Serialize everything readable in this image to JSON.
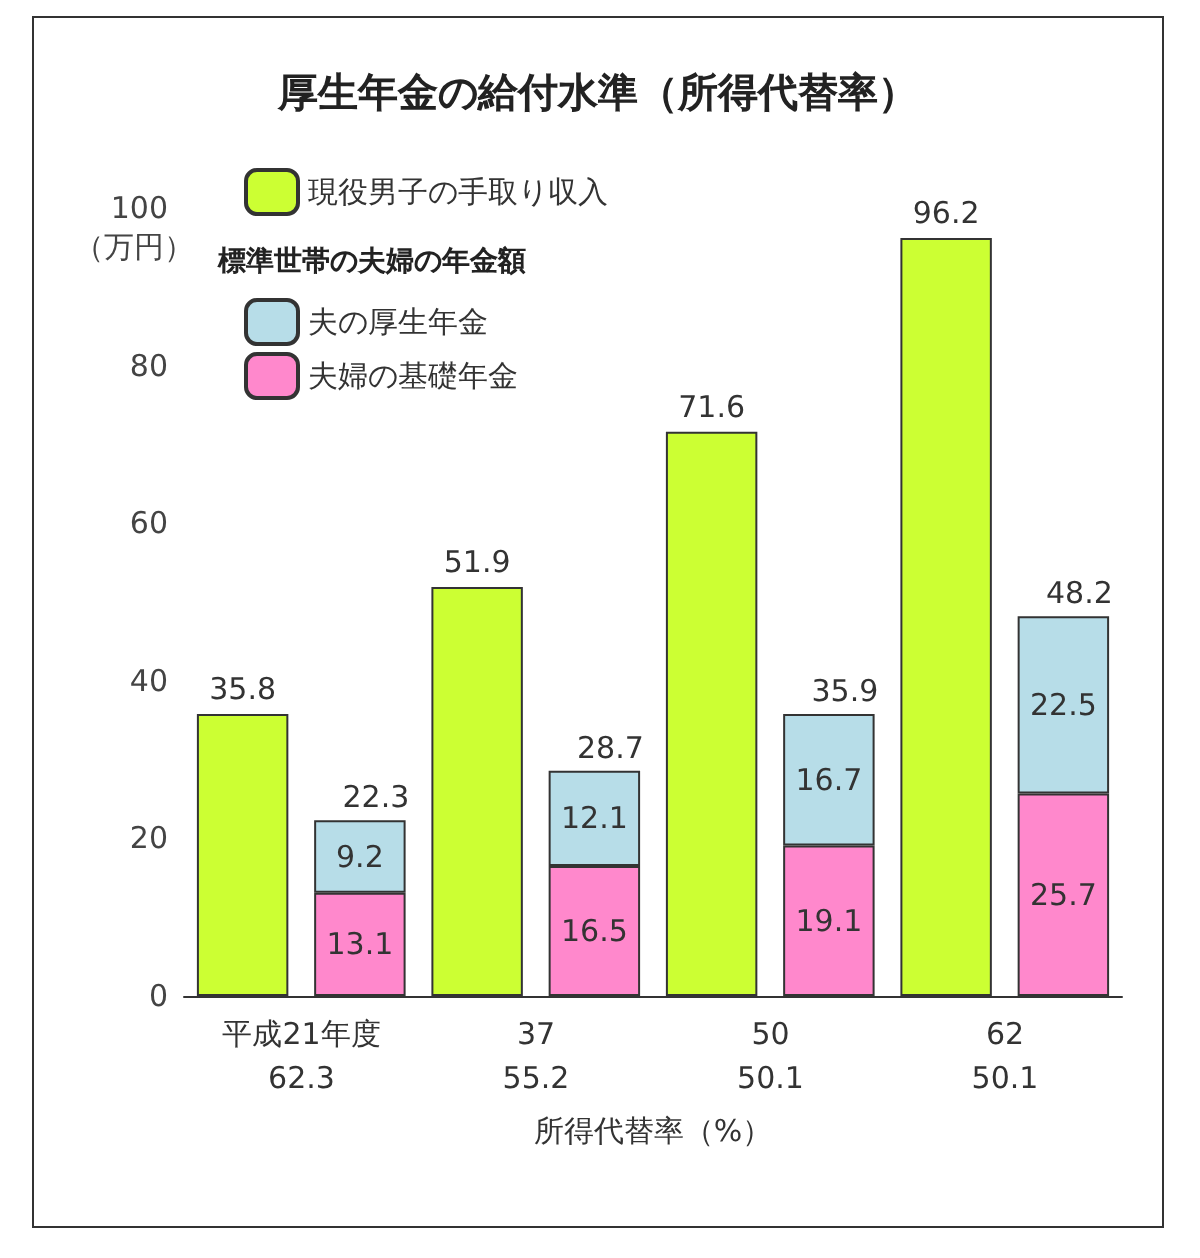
{
  "chart_data": {
    "type": "bar",
    "title": "厚生年金の給付水準（所得代替率）",
    "categories": [
      "平成21年度\n62.3",
      null,
      "37\n55.2",
      null,
      "50\n50.1",
      null,
      "62\n50.1",
      null
    ],
    "xlabel": "所得代替率（%）",
    "ylabel": "（万円）",
    "legend_title": "標準世帯の夫婦の年金額",
    "series": [
      {
        "name": "現役男子の手取り収入",
        "color": "#ccff33",
        "values": [
          35.8,
          null,
          51.9,
          null,
          71.6,
          null,
          96.2,
          null
        ]
      },
      {
        "name": "夫婦の基礎年金",
        "color": "#ff88cc",
        "values": [
          null,
          13.1,
          null,
          16.5,
          null,
          19.1,
          null,
          25.7
        ]
      },
      {
        "name": "夫の厚生年金",
        "color": "#b7dde8",
        "values": [
          null,
          9.2,
          null,
          12.1,
          null,
          16.7,
          null,
          22.5
        ]
      }
    ],
    "stacked": true,
    "totals": [
      null,
      "22.3",
      null,
      "28.7",
      null,
      "35.9",
      null,
      "48.2"
    ],
    "ylim": [
      0,
      100
    ],
    "yticks": [
      0,
      20,
      40,
      60,
      80,
      100
    ],
    "data_labels": true,
    "grid": false,
    "legend": "top left"
  }
}
